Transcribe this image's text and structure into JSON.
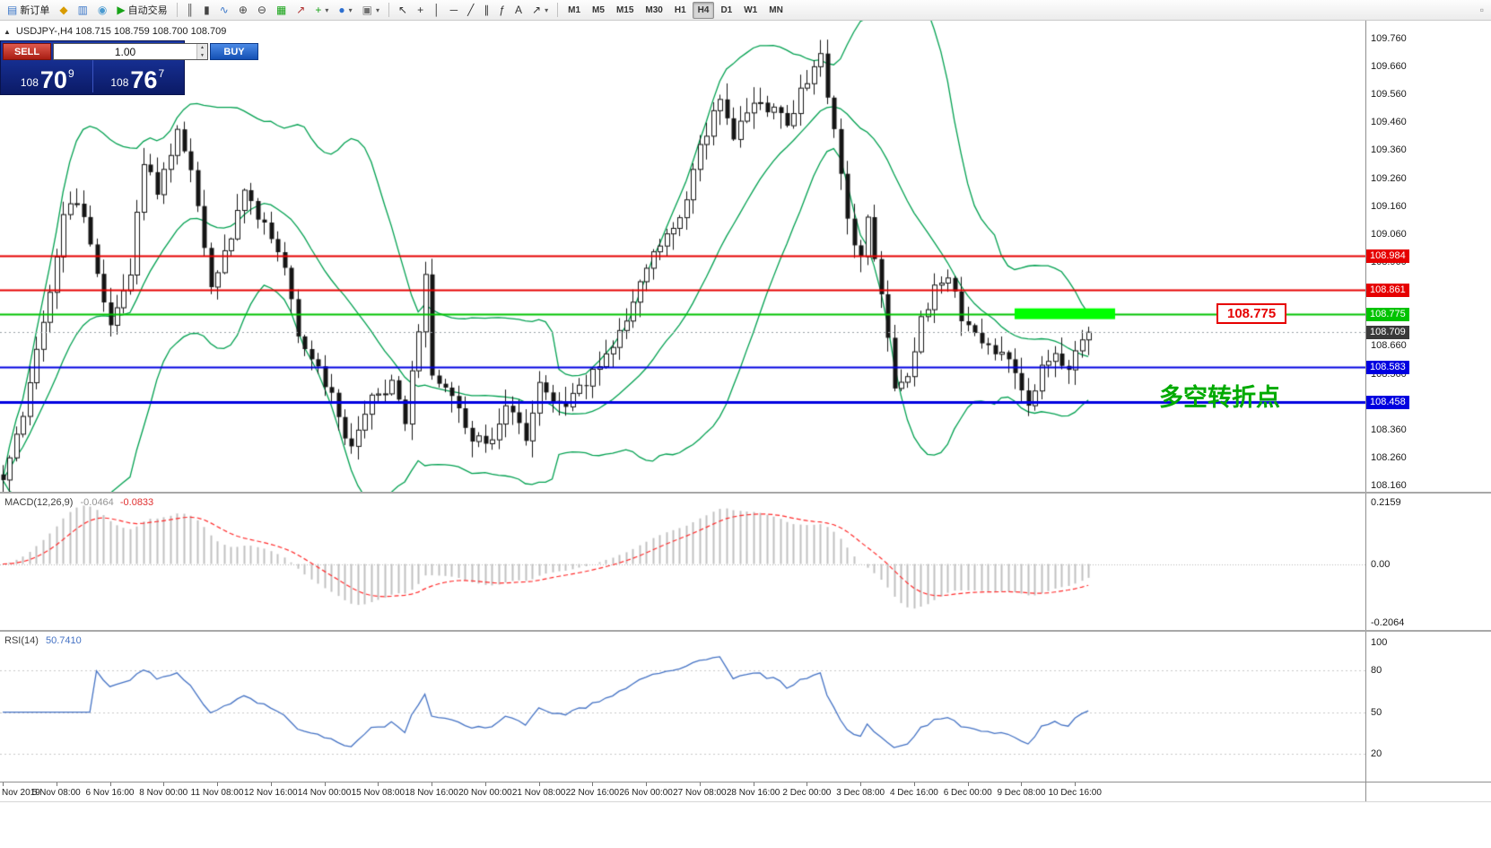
{
  "toolbar": {
    "caret_glyph": "▾",
    "groups": [
      {
        "items": [
          {
            "name": "new-order-button",
            "icon": "new-order-icon",
            "glyph": "▤",
            "color": "#3a76c8",
            "label": "新订单"
          },
          {
            "name": "profiles-button",
            "icon": "profiles-icon",
            "glyph": "◆",
            "color": "#d89b00"
          },
          {
            "name": "market-watch-button",
            "icon": "market-watch-icon",
            "glyph": "▥",
            "color": "#3a76c8"
          },
          {
            "name": "data-window-button",
            "icon": "data-window-icon",
            "glyph": "◉",
            "color": "#4a9ad0"
          },
          {
            "name": "auto-trading-button",
            "icon": "auto-trading-icon",
            "glyph": "▶",
            "color": "#17a317",
            "label": "自动交易"
          }
        ]
      },
      {
        "items": [
          {
            "name": "bar-chart-button",
            "icon": "bar-chart-icon",
            "glyph": "║",
            "color": "#444444"
          },
          {
            "name": "candlestick-chart-button",
            "icon": "candlestick-icon",
            "glyph": "▮",
            "color": "#444444"
          },
          {
            "name": "line-chart-button",
            "icon": "line-chart-icon",
            "glyph": "∿",
            "color": "#3a76c8"
          },
          {
            "name": "zoom-in-button",
            "icon": "zoom-in-icon",
            "glyph": "⊕",
            "color": "#444444"
          },
          {
            "name": "zoom-out-button",
            "icon": "zoom-out-icon",
            "glyph": "⊖",
            "color": "#444444"
          },
          {
            "name": "tile-windows-button",
            "icon": "tile-windows-icon",
            "glyph": "▦",
            "color": "#17a317"
          },
          {
            "name": "indicators-button",
            "icon": "indicators-icon",
            "glyph": "↗",
            "color": "#b03030"
          },
          {
            "name": "add-indicator-button",
            "icon": "plus-icon",
            "glyph": "+",
            "color": "#17a317",
            "caret": true
          },
          {
            "name": "period-button",
            "icon": "clock-icon",
            "glyph": "●",
            "color": "#2d6fd0",
            "caret": true
          },
          {
            "name": "template-button",
            "icon": "template-icon",
            "glyph": "▣",
            "color": "#707070",
            "caret": true
          }
        ]
      },
      {
        "items": [
          {
            "name": "cursor-button",
            "icon": "cursor-icon",
            "glyph": "↖",
            "color": "#333333"
          },
          {
            "name": "crosshair-button",
            "icon": "crosshair-icon",
            "glyph": "+",
            "color": "#333333"
          },
          {
            "name": "vertical-line-button",
            "icon": "vertical-line-icon",
            "glyph": "│",
            "color": "#333333"
          },
          {
            "name": "horizontal-line-button",
            "icon": "horizontal-line-icon",
            "glyph": "─",
            "color": "#333333"
          },
          {
            "name": "trendline-button",
            "icon": "trendline-icon",
            "glyph": "╱",
            "color": "#333333"
          },
          {
            "name": "channel-button",
            "icon": "channel-icon",
            "glyph": "∥",
            "color": "#333333"
          },
          {
            "name": "fibonacci-button",
            "icon": "fibonacci-icon",
            "glyph": "ƒ",
            "color": "#333333"
          },
          {
            "name": "text-button",
            "icon": "text-icon",
            "glyph": "A",
            "color": "#333333"
          },
          {
            "name": "arrows-button",
            "icon": "arrows-icon",
            "glyph": "↗",
            "color": "#333333",
            "caret": true
          }
        ]
      }
    ],
    "timeframes": [
      "M1",
      "M5",
      "M15",
      "M30",
      "H1",
      "H4",
      "D1",
      "W1",
      "MN"
    ],
    "active_timeframe": "H4",
    "right_icons": [
      {
        "name": "chart-window-button",
        "icon": "chart-window-icon",
        "glyph": "▫",
        "color": "#888888"
      }
    ]
  },
  "symbol_bar": {
    "collapse_icon": "▲",
    "text": "USDJPY-,H4  108.715 108.759 108.700 108.709"
  },
  "trade_panel": {
    "sell_label": "SELL",
    "buy_label": "BUY",
    "volume": "1.00",
    "up_glyph": "▲",
    "down_glyph": "▼",
    "sell_main": "108",
    "sell_big": "70",
    "sell_sup": "9",
    "buy_main": "108",
    "buy_big": "76",
    "buy_sup": "7"
  },
  "chart_data": {
    "type": "candlestick",
    "symbol": "USDJPY-",
    "timeframe": "H4",
    "ohlc": {
      "open": "108.715",
      "high": "108.759",
      "low": "108.700",
      "close": "108.709"
    },
    "current_price": 108.709,
    "current_price_label": "108.709",
    "candle_count": 163,
    "candle_spacing": 7.47,
    "y_axis": {
      "min": 108.138,
      "max": 109.824,
      "ticks": [
        "109.760",
        "109.660",
        "109.560",
        "109.460",
        "109.360",
        "109.260",
        "109.160",
        "109.060",
        "108.960",
        "108.860",
        "108.760",
        "108.660",
        "108.560",
        "108.460",
        "108.360",
        "108.260",
        "108.160"
      ]
    },
    "anchors": [
      [
        0,
        108.2
      ],
      [
        3,
        108.42
      ],
      [
        6,
        108.75
      ],
      [
        9,
        109.12
      ],
      [
        11,
        109.18
      ],
      [
        13,
        109.02
      ],
      [
        16,
        108.72
      ],
      [
        19,
        108.92
      ],
      [
        21,
        109.33
      ],
      [
        23,
        109.22
      ],
      [
        26,
        109.42
      ],
      [
        28,
        109.3
      ],
      [
        31,
        108.88
      ],
      [
        34,
        109.05
      ],
      [
        36,
        109.22
      ],
      [
        39,
        109.08
      ],
      [
        42,
        108.92
      ],
      [
        44,
        108.7
      ],
      [
        47,
        108.58
      ],
      [
        50,
        108.42
      ],
      [
        52,
        108.28
      ],
      [
        55,
        108.48
      ],
      [
        58,
        108.52
      ],
      [
        60,
        108.38
      ],
      [
        62,
        108.72
      ],
      [
        63,
        108.9
      ],
      [
        64,
        108.55
      ],
      [
        67,
        108.46
      ],
      [
        70,
        108.34
      ],
      [
        73,
        108.32
      ],
      [
        75,
        108.46
      ],
      [
        78,
        108.34
      ],
      [
        80,
        108.52
      ],
      [
        83,
        108.44
      ],
      [
        86,
        108.5
      ],
      [
        88,
        108.56
      ],
      [
        91,
        108.66
      ],
      [
        94,
        108.82
      ],
      [
        96,
        108.96
      ],
      [
        99,
        109.06
      ],
      [
        102,
        109.18
      ],
      [
        104,
        109.36
      ],
      [
        107,
        109.56
      ],
      [
        109,
        109.42
      ],
      [
        112,
        109.52
      ],
      [
        115,
        109.5
      ],
      [
        117,
        109.46
      ],
      [
        120,
        109.62
      ],
      [
        122,
        109.7
      ],
      [
        124,
        109.42
      ],
      [
        126,
        109.12
      ],
      [
        128,
        108.96
      ],
      [
        129,
        109.1
      ],
      [
        131,
        108.86
      ],
      [
        133,
        108.52
      ],
      [
        135,
        108.56
      ],
      [
        137,
        108.76
      ],
      [
        139,
        108.86
      ],
      [
        141,
        108.92
      ],
      [
        143,
        108.76
      ],
      [
        145,
        108.7
      ],
      [
        147,
        108.66
      ],
      [
        149,
        108.62
      ],
      [
        151,
        108.56
      ],
      [
        153,
        108.44
      ],
      [
        155,
        108.6
      ],
      [
        157,
        108.64
      ],
      [
        159,
        108.58
      ],
      [
        161,
        108.68
      ],
      [
        162,
        108.709
      ]
    ],
    "bollinger": {
      "period": 20,
      "deviation": 2
    },
    "price_levels": [
      {
        "price": 108.984,
        "label": "108.984",
        "color": "#e60000",
        "width": 2
      },
      {
        "price": 108.861,
        "label": "108.861",
        "color": "#e60000",
        "width": 2
      },
      {
        "price": 108.775,
        "label": "108.775",
        "color": "#00c300",
        "width": 2
      },
      {
        "price": 108.583,
        "label": "108.583",
        "color": "#0000e0",
        "width": 2
      },
      {
        "price": 108.458,
        "label": "108.458",
        "color": "#0000e0",
        "width": 3
      }
    ],
    "highlight_rect": {
      "price": 108.775,
      "from_index": 151,
      "to_index": 166,
      "color": "#00ff00"
    },
    "annotations": {
      "callout_price": "108.775",
      "turning_point_text": "多空转折点"
    },
    "macd": {
      "label": "MACD(12,26,9)",
      "value1": "-0.0464",
      "value2": "-0.0833",
      "fast": 12,
      "slow": 26,
      "signal": 9,
      "scale": {
        "min": -0.2316,
        "max": 0.2474
      },
      "axis_labels": [
        {
          "label": "0.2159",
          "value": 0.2159
        },
        {
          "label": "0.00",
          "value": 0
        },
        {
          "label": "-0.2064",
          "value": -0.2064
        }
      ]
    },
    "rsi": {
      "label": "RSI(14)",
      "value": "50.7410",
      "period": 14,
      "scale": {
        "min": 0,
        "max": 108
      },
      "levels": [
        80,
        50,
        20
      ],
      "axis_labels": [
        {
          "label": "100",
          "value": 100
        },
        {
          "label": "80",
          "value": 80
        },
        {
          "label": "50",
          "value": 50
        },
        {
          "label": "20",
          "value": 20
        }
      ]
    },
    "time_axis": [
      "Nov 2019",
      "5 Nov 08:00",
      "6 Nov 16:00",
      "8 Nov 00:00",
      "11 Nov 08:00",
      "12 Nov 16:00",
      "14 Nov 00:00",
      "15 Nov 08:00",
      "18 Nov 16:00",
      "20 Nov 00:00",
      "21 Nov 08:00",
      "22 Nov 16:00",
      "26 Nov 00:00",
      "27 Nov 08:00",
      "28 Nov 16:00",
      "2 Dec 00:00",
      "3 Dec 08:00",
      "4 Dec 16:00",
      "6 Dec 00:00",
      "9 Dec 08:00",
      "10 Dec 16:00"
    ],
    "colors": {
      "bollinger": "#00a050",
      "up": "#ffffff",
      "down": "#151515",
      "wick": "#151515",
      "macd_hist": "#c0c0c0",
      "macd_signal": "#ff2a2a",
      "rsi": "#4472c4",
      "current_tag": "#3a3a3a",
      "current_dash": "#9aa0a6"
    }
  }
}
